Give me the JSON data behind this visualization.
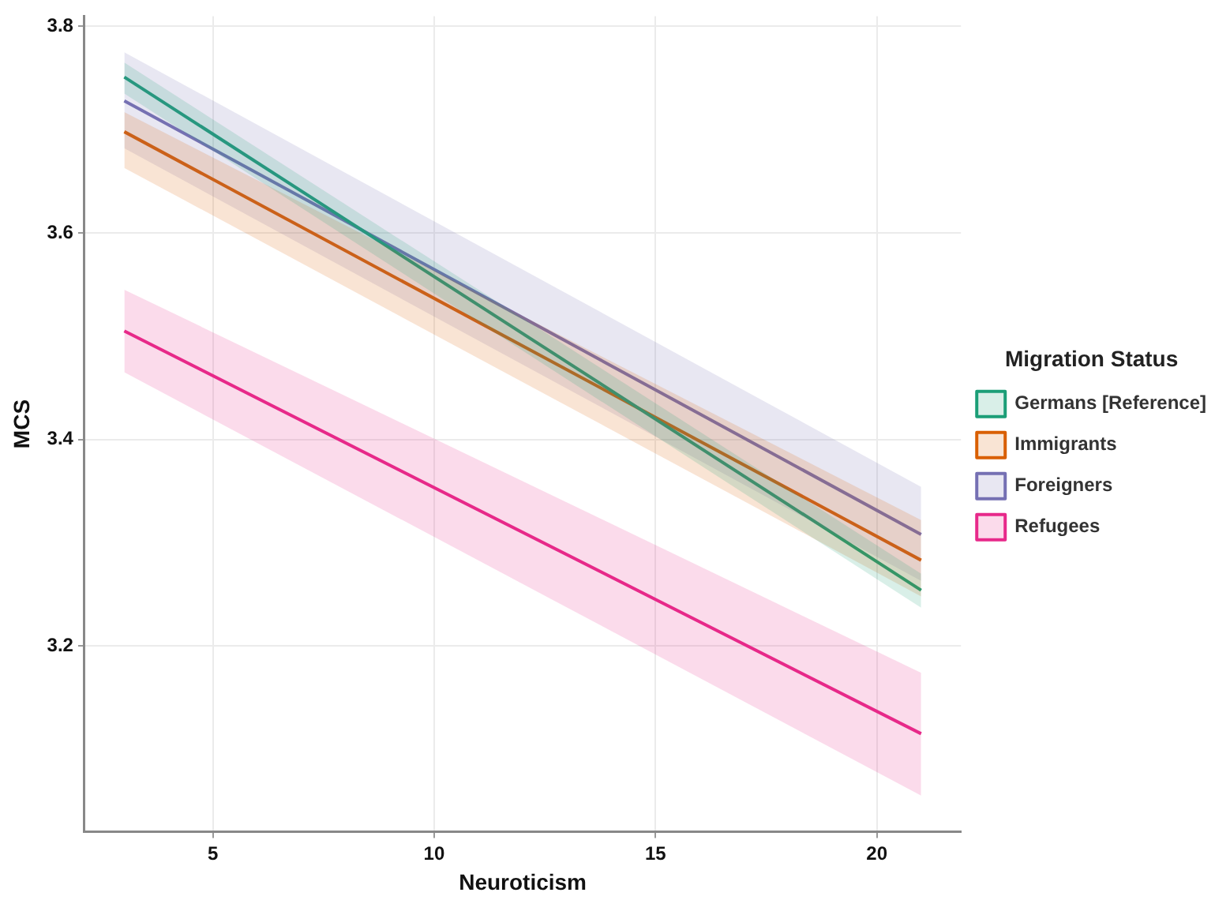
{
  "chart_data": {
    "type": "line",
    "xlabel": "Neuroticism",
    "ylabel": "MCS",
    "legend_title": "Migration Status",
    "xlim": [
      2.1,
      21.9
    ],
    "xticks": [
      5,
      10,
      15,
      20
    ],
    "ylim": [
      3.02,
      3.81
    ],
    "yticks": [
      3.2,
      3.4,
      3.6,
      3.8
    ],
    "grid": true,
    "legend": "right",
    "marker": "none",
    "line_style": "solid",
    "x": [
      3,
      21
    ],
    "series": [
      {
        "name": "Germans [Reference]",
        "color": "#1b9e77",
        "values": [
          3.751,
          3.254
        ],
        "lower": [
          3.735,
          3.237
        ],
        "upper": [
          3.765,
          3.27
        ]
      },
      {
        "name": "Immigrants",
        "color": "#d95f02",
        "values": [
          3.698,
          3.283
        ],
        "lower": [
          3.663,
          3.248
        ],
        "upper": [
          3.717,
          3.322
        ]
      },
      {
        "name": "Foreigners",
        "color": "#7570b3",
        "values": [
          3.728,
          3.308
        ],
        "lower": [
          3.682,
          3.263
        ],
        "upper": [
          3.775,
          3.354
        ]
      },
      {
        "name": "Refugees",
        "color": "#e7298a",
        "values": [
          3.505,
          3.115
        ],
        "lower": [
          3.465,
          3.055
        ],
        "upper": [
          3.545,
          3.174
        ]
      }
    ]
  }
}
